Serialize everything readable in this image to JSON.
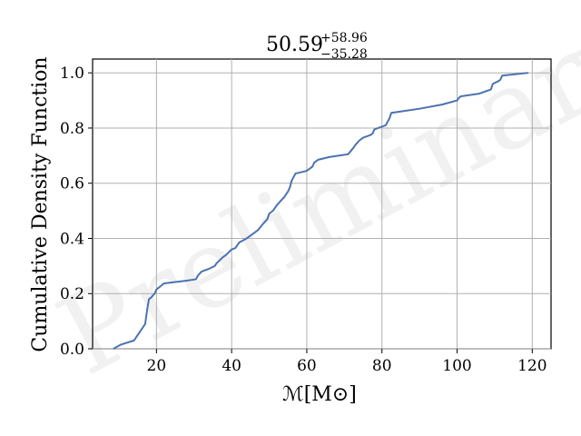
{
  "chart_data": {
    "type": "line",
    "title": {
      "median": "50.59",
      "upper": "+58.96",
      "lower": "−35.28"
    },
    "xlabel": "ℳ[M⊙]",
    "ylabel": "Cumulative Density Function",
    "watermark": "Preliminary",
    "xlim": [
      3,
      125
    ],
    "ylim": [
      0.0,
      1.05
    ],
    "xticks": [
      20,
      40,
      60,
      80,
      100,
      120
    ],
    "yticks": [
      0.0,
      0.2,
      0.4,
      0.6,
      0.8,
      1.0
    ],
    "ytick_labels": [
      "0.0",
      "0.2",
      "0.4",
      "0.6",
      "0.8",
      "1.0"
    ],
    "grid": true,
    "line_color": "#4c72b0",
    "series": [
      {
        "x": [
          8.5,
          10.5,
          14,
          15.5,
          16.5,
          17,
          17.5,
          18,
          18.5,
          19.5,
          20,
          22,
          28,
          30.5,
          31,
          32,
          34,
          35.5,
          36,
          37.5,
          38.5,
          40,
          41,
          42,
          44,
          46,
          47,
          48.5,
          49.5,
          50,
          51,
          52,
          53,
          54,
          55,
          55.5,
          56,
          57,
          60,
          61.5,
          62,
          63,
          66,
          71,
          72.5,
          73,
          74,
          75,
          77,
          77.5,
          78,
          81,
          82,
          82.5,
          85,
          90,
          96,
          100,
          100.5,
          101,
          106,
          109,
          109.5,
          111,
          111.5,
          112,
          119
        ],
        "y": [
          0.0,
          0.015,
          0.03,
          0.06,
          0.08,
          0.09,
          0.14,
          0.18,
          0.185,
          0.2,
          0.215,
          0.237,
          0.247,
          0.252,
          0.265,
          0.28,
          0.29,
          0.3,
          0.31,
          0.33,
          0.34,
          0.36,
          0.365,
          0.385,
          0.4,
          0.42,
          0.43,
          0.455,
          0.47,
          0.49,
          0.5,
          0.52,
          0.535,
          0.55,
          0.57,
          0.585,
          0.61,
          0.635,
          0.645,
          0.66,
          0.675,
          0.685,
          0.695,
          0.705,
          0.73,
          0.74,
          0.755,
          0.765,
          0.775,
          0.78,
          0.795,
          0.81,
          0.835,
          0.855,
          0.86,
          0.87,
          0.885,
          0.9,
          0.91,
          0.915,
          0.925,
          0.94,
          0.96,
          0.97,
          0.975,
          0.99,
          1.0
        ]
      }
    ]
  }
}
